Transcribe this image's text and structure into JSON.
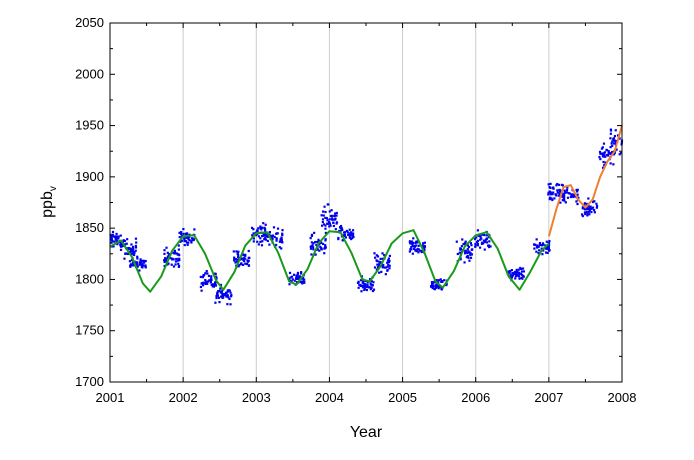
{
  "chart_data": {
    "type": "scatter",
    "title": "",
    "xlabel": "Year",
    "ylabel": "ppb",
    "ylabel_subscript": "v",
    "xlim": [
      2001,
      2008
    ],
    "ylim": [
      1700,
      2050
    ],
    "xticks": [
      "2001",
      "2002",
      "2003",
      "2004",
      "2005",
      "2006",
      "2007",
      "2008"
    ],
    "yticks": [
      "1700",
      "1750",
      "1800",
      "1850",
      "1900",
      "1950",
      "2000",
      "2050"
    ],
    "grid": "vertical",
    "legend": "none",
    "colors": {
      "points": "#0000ee",
      "fit_main": "#1a9a1a",
      "fit_recent": "#f08030",
      "grid": "#cccccc"
    },
    "series": [
      {
        "kind": "scatter",
        "clusters": [
          {
            "x": 2001.08,
            "y": 1838,
            "spread": 12
          },
          {
            "x": 2001.25,
            "y": 1830,
            "spread": 14
          },
          {
            "x": 2001.38,
            "y": 1815,
            "spread": 10
          },
          {
            "x": 2001.85,
            "y": 1822,
            "spread": 14
          },
          {
            "x": 2002.05,
            "y": 1840,
            "spread": 14
          },
          {
            "x": 2002.35,
            "y": 1800,
            "spread": 16
          },
          {
            "x": 2002.55,
            "y": 1785,
            "spread": 12
          },
          {
            "x": 2002.8,
            "y": 1820,
            "spread": 14
          },
          {
            "x": 2003.05,
            "y": 1845,
            "spread": 18
          },
          {
            "x": 2003.25,
            "y": 1840,
            "spread": 16
          },
          {
            "x": 2003.55,
            "y": 1800,
            "spread": 10
          },
          {
            "x": 2003.85,
            "y": 1832,
            "spread": 18
          },
          {
            "x": 2004.0,
            "y": 1858,
            "spread": 20
          },
          {
            "x": 2004.22,
            "y": 1845,
            "spread": 12
          },
          {
            "x": 2004.5,
            "y": 1795,
            "spread": 12
          },
          {
            "x": 2004.72,
            "y": 1815,
            "spread": 14
          },
          {
            "x": 2005.2,
            "y": 1832,
            "spread": 12
          },
          {
            "x": 2005.5,
            "y": 1795,
            "spread": 8
          },
          {
            "x": 2005.85,
            "y": 1828,
            "spread": 16
          },
          {
            "x": 2006.1,
            "y": 1840,
            "spread": 18
          },
          {
            "x": 2006.55,
            "y": 1805,
            "spread": 12
          },
          {
            "x": 2006.9,
            "y": 1832,
            "spread": 12
          },
          {
            "x": 2007.1,
            "y": 1885,
            "spread": 16
          },
          {
            "x": 2007.3,
            "y": 1882,
            "spread": 14
          },
          {
            "x": 2007.55,
            "y": 1870,
            "spread": 14
          },
          {
            "x": 2007.8,
            "y": 1920,
            "spread": 14
          },
          {
            "x": 2007.95,
            "y": 1935,
            "spread": 22
          }
        ]
      },
      {
        "kind": "line",
        "color": "fit_main",
        "x": [
          2001.0,
          2001.15,
          2001.3,
          2001.45,
          2001.55,
          2001.7,
          2001.85,
          2002.0,
          2002.15,
          2002.3,
          2002.45,
          2002.55,
          2002.7,
          2002.85,
          2003.0,
          2003.15,
          2003.3,
          2003.45,
          2003.55,
          2003.7,
          2003.85,
          2004.0,
          2004.15,
          2004.3,
          2004.45,
          2004.55,
          2004.7,
          2004.85,
          2005.0,
          2005.15,
          2005.3,
          2005.45,
          2005.55,
          2005.7,
          2005.85,
          2006.0,
          2006.15,
          2006.3,
          2006.45,
          2006.6,
          2006.75,
          2006.9,
          2007.0
        ],
        "y": [
          1832,
          1838,
          1822,
          1796,
          1788,
          1803,
          1828,
          1842,
          1843,
          1825,
          1799,
          1790,
          1807,
          1833,
          1845,
          1846,
          1826,
          1798,
          1795,
          1810,
          1835,
          1847,
          1846,
          1826,
          1800,
          1798,
          1813,
          1835,
          1845,
          1848,
          1826,
          1798,
          1792,
          1808,
          1832,
          1843,
          1846,
          1830,
          1803,
          1790,
          1808,
          1828,
          1835
        ]
      },
      {
        "kind": "line",
        "color": "fit_recent",
        "x": [
          2007.0,
          2007.1,
          2007.2,
          2007.3,
          2007.4,
          2007.5,
          2007.6,
          2007.7,
          2007.8,
          2007.9,
          2008.0
        ],
        "y": [
          1842,
          1868,
          1890,
          1892,
          1878,
          1870,
          1878,
          1900,
          1915,
          1925,
          1950
        ]
      }
    ]
  }
}
